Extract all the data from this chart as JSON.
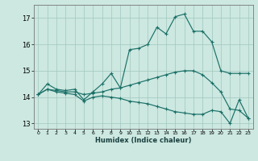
{
  "title": "",
  "xlabel": "Humidex (Indice chaleur)",
  "background_color": "#cce8e0",
  "grid_color": "#a0c8be",
  "line_color": "#1a7068",
  "xlim": [
    -0.5,
    23.5
  ],
  "ylim": [
    12.8,
    17.5
  ],
  "yticks": [
    13,
    14,
    15,
    16,
    17
  ],
  "xticks": [
    0,
    1,
    2,
    3,
    4,
    5,
    6,
    7,
    8,
    9,
    10,
    11,
    12,
    13,
    14,
    15,
    16,
    17,
    18,
    19,
    20,
    21,
    22,
    23
  ],
  "line1_x": [
    0,
    1,
    2,
    3,
    4,
    5,
    6,
    7,
    8,
    9,
    10,
    11,
    12,
    13,
    14,
    15,
    16,
    17,
    18,
    19,
    20,
    21,
    22,
    23
  ],
  "line1_y": [
    14.1,
    14.5,
    14.3,
    14.25,
    14.3,
    13.9,
    14.2,
    14.5,
    14.9,
    14.35,
    15.8,
    15.85,
    16.0,
    16.65,
    16.4,
    17.05,
    17.15,
    16.5,
    16.5,
    16.1,
    15.0,
    14.9,
    14.9,
    14.9
  ],
  "line2_x": [
    0,
    1,
    2,
    3,
    4,
    5,
    6,
    7,
    8,
    9,
    10,
    11,
    12,
    13,
    14,
    15,
    16,
    17,
    18,
    19,
    20,
    21,
    22,
    23
  ],
  "line2_y": [
    14.1,
    14.3,
    14.25,
    14.2,
    14.2,
    14.1,
    14.15,
    14.2,
    14.3,
    14.35,
    14.45,
    14.55,
    14.65,
    14.75,
    14.85,
    14.95,
    15.0,
    15.0,
    14.85,
    14.55,
    14.2,
    13.55,
    13.5,
    13.2
  ],
  "line3_x": [
    0,
    1,
    2,
    3,
    4,
    5,
    6,
    7,
    8,
    9,
    10,
    11,
    12,
    13,
    14,
    15,
    16,
    17,
    18,
    19,
    20,
    21,
    22,
    23
  ],
  "line3_y": [
    14.1,
    14.3,
    14.2,
    14.15,
    14.1,
    13.85,
    14.0,
    14.05,
    14.0,
    13.95,
    13.85,
    13.8,
    13.75,
    13.65,
    13.55,
    13.45,
    13.4,
    13.35,
    13.35,
    13.5,
    13.45,
    13.0,
    13.9,
    13.2
  ]
}
